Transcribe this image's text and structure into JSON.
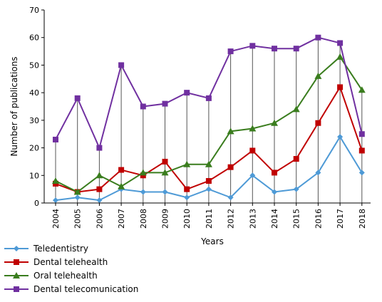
{
  "chart_data": {
    "type": "line",
    "title": "",
    "xlabel": "Years",
    "ylabel": "Number of publications",
    "ylim": [
      0,
      70
    ],
    "yticks": [
      0,
      10,
      20,
      30,
      40,
      50,
      60,
      70
    ],
    "x": [
      "2004",
      "2005",
      "2006",
      "2007",
      "2008",
      "2009",
      "2010",
      "2011",
      "2012",
      "2013",
      "2014",
      "2015",
      "2016",
      "2017",
      "2018"
    ],
    "grid": "vertical drop lines at each year",
    "legend_position": "bottom-left",
    "series": [
      {
        "name": "Teledentistry",
        "color": "#4e9ad6",
        "marker": "diamond",
        "values": [
          1,
          2,
          1,
          5,
          4,
          4,
          2,
          5,
          2,
          10,
          4,
          5,
          11,
          24,
          11
        ]
      },
      {
        "name": "Dental telehealth",
        "color": "#c00000",
        "marker": "square",
        "values": [
          7,
          4,
          5,
          12,
          10,
          15,
          5,
          8,
          13,
          19,
          11,
          16,
          29,
          42,
          19
        ]
      },
      {
        "name": "Oral telehealth",
        "color": "#3a7d1e",
        "marker": "triangle",
        "values": [
          8,
          4,
          10,
          6,
          11,
          11,
          14,
          14,
          26,
          27,
          29,
          34,
          46,
          53,
          41
        ]
      },
      {
        "name": "Dental telecomunication",
        "color": "#7030a0",
        "marker": "square",
        "values": [
          23,
          38,
          20,
          50,
          35,
          36,
          40,
          38,
          55,
          57,
          56,
          56,
          60,
          58,
          25
        ]
      }
    ]
  }
}
